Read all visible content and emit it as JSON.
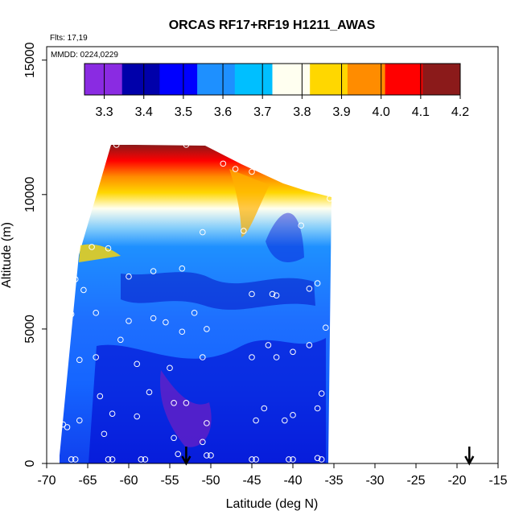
{
  "chart_data": {
    "type": "heatmap",
    "title": "ORCAS RF17+RF19 H1211_AWAS",
    "annotations": [
      "Flts: 17,19",
      "MMDD: 0224,0229"
    ],
    "xlabel": "Latitude (deg N)",
    "ylabel": "Altitude (m)",
    "xlim": [
      -70,
      -15
    ],
    "ylim": [
      0,
      15500
    ],
    "x_ticks": [
      -70,
      -65,
      -60,
      -55,
      -50,
      -45,
      -40,
      -35,
      -30,
      -25,
      -20,
      -15
    ],
    "x_tick_labels": [
      "-70",
      "-65",
      "-60",
      "-55",
      "-50",
      "-45",
      "-40",
      "-35",
      "-30",
      "-25",
      "-20",
      "-15"
    ],
    "y_ticks": [
      0,
      5000,
      10000,
      15000
    ],
    "y_tick_labels": [
      "0",
      "5000",
      "10000",
      "15000"
    ],
    "colorbar": {
      "min": 3.25,
      "max": 4.2,
      "ticks": [
        3.3,
        3.4,
        3.5,
        3.6,
        3.7,
        3.8,
        3.9,
        4.0,
        4.1,
        4.2
      ],
      "tick_labels": [
        "3.3",
        "3.4",
        "3.5",
        "3.6",
        "3.7",
        "3.8",
        "3.9",
        "4.0",
        "4.1",
        "4.2"
      ],
      "colors": [
        "#8a2be2",
        "#0000aa",
        "#0000ff",
        "#1e90ff",
        "#00bfff",
        "#fffff0",
        "#ffd700",
        "#ff8c00",
        "#ff0000",
        "#8b1a1a"
      ]
    },
    "arrows_latitude": [
      -53,
      -18.5
    ],
    "samples": [
      {
        "x": -61.5,
        "y": 11850
      },
      {
        "x": -53,
        "y": 11850
      },
      {
        "x": -48.5,
        "y": 11150
      },
      {
        "x": -47,
        "y": 10950
      },
      {
        "x": -45,
        "y": 10850
      },
      {
        "x": -35.5,
        "y": 9850
      },
      {
        "x": -51,
        "y": 8600
      },
      {
        "x": -46,
        "y": 8650
      },
      {
        "x": -39,
        "y": 8850
      },
      {
        "x": -64.5,
        "y": 8050
      },
      {
        "x": -62.5,
        "y": 8000
      },
      {
        "x": -53.5,
        "y": 7250
      },
      {
        "x": -57,
        "y": 7150
      },
      {
        "x": -60,
        "y": 6950
      },
      {
        "x": -66.5,
        "y": 6850
      },
      {
        "x": -37,
        "y": 6700
      },
      {
        "x": -38,
        "y": 6500
      },
      {
        "x": -65.5,
        "y": 6450
      },
      {
        "x": -45,
        "y": 6300
      },
      {
        "x": -42.5,
        "y": 6300
      },
      {
        "x": -42,
        "y": 6250
      },
      {
        "x": -52,
        "y": 5600
      },
      {
        "x": -64,
        "y": 5600
      },
      {
        "x": -67,
        "y": 5550
      },
      {
        "x": -60,
        "y": 5300
      },
      {
        "x": -57,
        "y": 5400
      },
      {
        "x": -55.5,
        "y": 5250
      },
      {
        "x": -50.5,
        "y": 5000
      },
      {
        "x": -53.5,
        "y": 4900
      },
      {
        "x": -36,
        "y": 5050
      },
      {
        "x": -61,
        "y": 4600
      },
      {
        "x": -43,
        "y": 4400
      },
      {
        "x": -38,
        "y": 4400
      },
      {
        "x": -40,
        "y": 4150
      },
      {
        "x": -64,
        "y": 3950
      },
      {
        "x": -51,
        "y": 3950
      },
      {
        "x": -45,
        "y": 3950
      },
      {
        "x": -42,
        "y": 3950
      },
      {
        "x": -66,
        "y": 3850
      },
      {
        "x": -68,
        "y": 3800
      },
      {
        "x": -59,
        "y": 3700
      },
      {
        "x": -55,
        "y": 3550
      },
      {
        "x": -57.5,
        "y": 2650
      },
      {
        "x": -63.5,
        "y": 2500
      },
      {
        "x": -68.5,
        "y": 2500
      },
      {
        "x": -36.5,
        "y": 2600
      },
      {
        "x": -54.5,
        "y": 2250
      },
      {
        "x": -53,
        "y": 2250
      },
      {
        "x": -43.5,
        "y": 2050
      },
      {
        "x": -37,
        "y": 2050
      },
      {
        "x": -62,
        "y": 1850
      },
      {
        "x": -59,
        "y": 1750
      },
      {
        "x": -40,
        "y": 1800
      },
      {
        "x": -66,
        "y": 1600
      },
      {
        "x": -44.5,
        "y": 1600
      },
      {
        "x": -41,
        "y": 1600
      },
      {
        "x": -50.5,
        "y": 1500
      },
      {
        "x": -68,
        "y": 1450
      },
      {
        "x": -67.5,
        "y": 1350
      },
      {
        "x": -63,
        "y": 1100
      },
      {
        "x": -54.5,
        "y": 950
      },
      {
        "x": -51,
        "y": 800
      },
      {
        "x": -54,
        "y": 350
      },
      {
        "x": -50.5,
        "y": 300
      },
      {
        "x": -50,
        "y": 300
      },
      {
        "x": -69,
        "y": 300
      },
      {
        "x": -69,
        "y": 150
      },
      {
        "x": -67,
        "y": 150
      },
      {
        "x": -66.5,
        "y": 150
      },
      {
        "x": -62.5,
        "y": 150
      },
      {
        "x": -62,
        "y": 150
      },
      {
        "x": -58.5,
        "y": 150
      },
      {
        "x": -58,
        "y": 150
      },
      {
        "x": -45,
        "y": 150
      },
      {
        "x": -44.5,
        "y": 150
      },
      {
        "x": -40.5,
        "y": 150
      },
      {
        "x": -40,
        "y": 150
      },
      {
        "x": -36.5,
        "y": 150
      },
      {
        "x": -37,
        "y": 200
      }
    ]
  }
}
